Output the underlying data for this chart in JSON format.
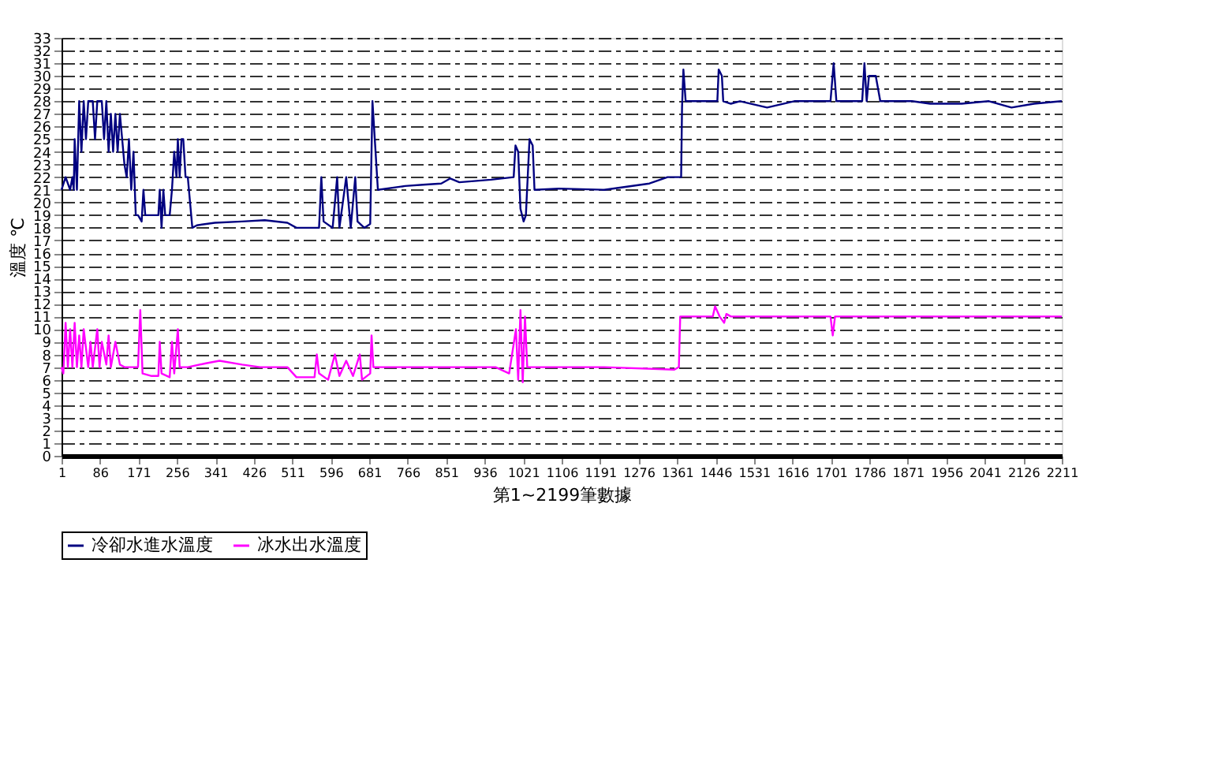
{
  "chart_data": {
    "type": "line",
    "xlabel": "第1~2199筆數據",
    "ylabel": "溫度 ℃",
    "xlim": [
      1,
      2211
    ],
    "xticks": [
      1,
      86,
      171,
      256,
      341,
      426,
      511,
      596,
      681,
      766,
      851,
      936,
      1021,
      1106,
      1191,
      1276,
      1361,
      1446,
      1531,
      1616,
      1701,
      1786,
      1871,
      1956,
      2041,
      2126,
      2211
    ],
    "ylim": [
      0,
      33
    ],
    "yticks": [
      0,
      1,
      2,
      3,
      4,
      5,
      6,
      7,
      8,
      9,
      10,
      11,
      12,
      13,
      14,
      15,
      16,
      17,
      18,
      19,
      20,
      21,
      22,
      23,
      24,
      25,
      26,
      27,
      28,
      29,
      30,
      31,
      32,
      33
    ],
    "grid": "y",
    "legend": "bottom",
    "line_style": "solid",
    "marker": "none",
    "series": [
      {
        "name": "冷卻水進水溫度",
        "color": "#000080",
        "x": [
          1,
          10,
          20,
          25,
          28,
          30,
          35,
          40,
          45,
          50,
          55,
          60,
          70,
          75,
          80,
          90,
          95,
          100,
          105,
          110,
          115,
          120,
          125,
          130,
          135,
          140,
          145,
          150,
          155,
          160,
          165,
          170,
          178,
          182,
          186,
          200,
          215,
          218,
          222,
          226,
          230,
          240,
          245,
          250,
          255,
          258,
          262,
          266,
          270,
          275,
          280,
          290,
          300,
          340,
          400,
          450,
          500,
          520,
          570,
          575,
          580,
          600,
          610,
          615,
          630,
          640,
          650,
          655,
          670,
          683,
          688,
          700,
          760,
          800,
          840,
          860,
          880,
          950,
          1000,
          1004,
          1010,
          1015,
          1022,
          1027,
          1035,
          1042,
          1046,
          1100,
          1200,
          1300,
          1340,
          1370,
          1372,
          1375,
          1380,
          1450,
          1453,
          1460,
          1463,
          1480,
          1500,
          1560,
          1620,
          1700,
          1707,
          1713,
          1770,
          1775,
          1780,
          1785,
          1800,
          1810,
          1880,
          1920,
          1990,
          2050,
          2100,
          2150,
          2211
        ],
        "values": [
          21,
          22,
          21,
          22,
          21,
          25,
          21,
          28,
          24,
          28,
          25,
          28,
          28,
          25,
          28,
          28,
          25,
          28,
          24,
          27,
          24,
          27,
          24,
          27,
          25,
          23,
          22,
          25,
          21,
          24,
          19,
          19,
          18.5,
          21,
          19,
          19,
          19,
          21,
          18,
          21,
          19,
          19,
          21,
          24,
          22,
          25,
          22,
          25,
          25,
          22,
          22,
          18,
          18.2,
          18.4,
          18.5,
          18.6,
          18.4,
          18,
          18,
          22,
          18.5,
          18,
          22,
          18,
          22,
          18,
          22,
          18.5,
          18,
          18.3,
          28,
          21,
          21.3,
          21.4,
          21.5,
          21.9,
          21.6,
          21.8,
          22,
          24.5,
          24,
          19.5,
          18.5,
          19,
          25,
          24.5,
          21,
          21.1,
          21,
          21.5,
          22,
          22,
          27.5,
          30.5,
          28,
          28,
          30.5,
          30,
          28,
          27.8,
          28,
          27.5,
          28,
          28,
          31,
          28,
          28,
          31,
          28,
          30,
          30,
          28,
          28,
          27.8,
          27.8,
          28,
          27.5,
          27.8,
          28
        ]
      },
      {
        "name": "冰水出水溫度",
        "color": "#ff00ff",
        "x": [
          1,
          5,
          10,
          15,
          20,
          25,
          30,
          35,
          40,
          45,
          50,
          60,
          65,
          70,
          80,
          85,
          90,
          100,
          105,
          110,
          120,
          130,
          140,
          150,
          170,
          175,
          180,
          200,
          215,
          218,
          222,
          240,
          245,
          250,
          258,
          262,
          280,
          320,
          350,
          400,
          440,
          500,
          520,
          560,
          565,
          570,
          590,
          605,
          615,
          630,
          645,
          660,
          665,
          683,
          686,
          690,
          750,
          850,
          930,
          960,
          990,
          1005,
          1010,
          1015,
          1020,
          1025,
          1030,
          1080,
          1200,
          1355,
          1365,
          1368,
          1440,
          1445,
          1455,
          1465,
          1470,
          1480,
          1600,
          1700,
          1705,
          1710,
          1800,
          1900,
          2000,
          2211
        ],
        "values": [
          7,
          6.5,
          10.5,
          7,
          10,
          7,
          10.5,
          7,
          9.5,
          7,
          10,
          7,
          9,
          7,
          10,
          7,
          9,
          7.2,
          9.5,
          7,
          9,
          7.2,
          7,
          7,
          7,
          11.5,
          6.5,
          6.3,
          6.3,
          9,
          6.5,
          6.2,
          9,
          6.5,
          10,
          7,
          7,
          7.3,
          7.5,
          7.2,
          7,
          7,
          6.2,
          6.2,
          8,
          6.5,
          6,
          8,
          6.3,
          7.5,
          6.3,
          8,
          6,
          6.5,
          9.5,
          7,
          7,
          7,
          7,
          7,
          6.5,
          10,
          6,
          11.5,
          5.8,
          11,
          7,
          7,
          7,
          6.8,
          7,
          11,
          11,
          11.8,
          11,
          10.5,
          11.2,
          11,
          11,
          11,
          9.5,
          11,
          11,
          11,
          11,
          11
        ]
      }
    ]
  }
}
